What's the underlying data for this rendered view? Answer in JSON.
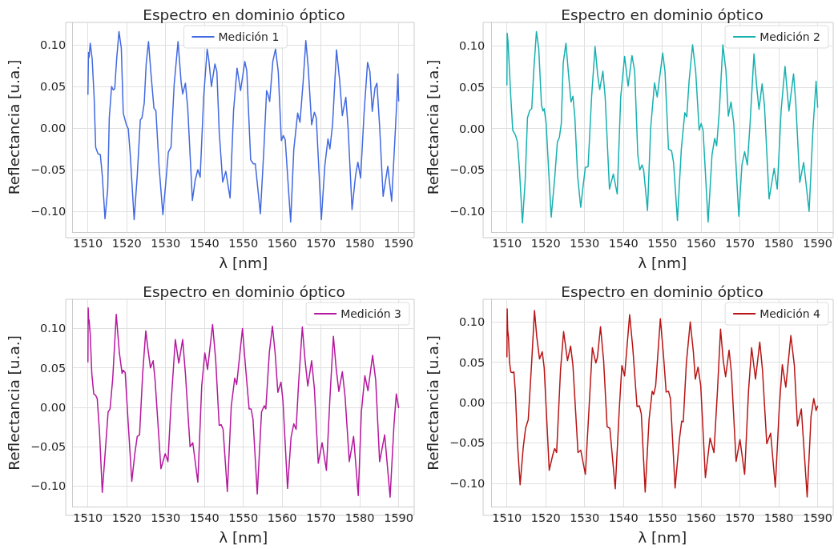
{
  "chart_data": [
    {
      "type": "line",
      "title": "Espectro en dominio óptico",
      "xlabel": "λ [nm]",
      "ylabel": "Reflectancia [u.a.]",
      "xlim": [
        1506,
        1594
      ],
      "xticks": [
        1510,
        1520,
        1530,
        1540,
        1550,
        1560,
        1570,
        1580,
        1590
      ],
      "ylim": [
        -0.125,
        0.127
      ],
      "yticks": [
        {
          "value": -0.1,
          "label": "−0.10"
        },
        {
          "value": -0.05,
          "label": "−0.05"
        },
        {
          "value": 0,
          "label": "0.00"
        },
        {
          "value": 0.05,
          "label": "0.05"
        },
        {
          "value": 0.1,
          "label": "0.10"
        }
      ],
      "grid": true,
      "legend": "top",
      "series": [
        {
          "name": "Medición 1",
          "color": "#4169e1",
          "x": [
            1510.0,
            1510.15,
            1510.3,
            1510.6,
            1511.1,
            1511.6,
            1512.0,
            1512.6,
            1513.2,
            1513.7,
            1514.4,
            1515.1,
            1515.5,
            1516.1,
            1516.5,
            1516.9,
            1517.4,
            1518.0,
            1518.6,
            1519.1,
            1519.9,
            1520.4,
            1520.9,
            1521.9,
            1522.7,
            1523.5,
            1523.9,
            1524.5,
            1525.0,
            1525.6,
            1526.3,
            1527.0,
            1527.5,
            1528.3,
            1529.3,
            1530.1,
            1530.7,
            1531.4,
            1532.2,
            1533.2,
            1534.0,
            1534.4,
            1535.1,
            1535.7,
            1536.9,
            1537.6,
            1538.3,
            1538.9,
            1539.8,
            1540.7,
            1541.1,
            1541.8,
            1542.7,
            1543.2,
            1543.8,
            1544.7,
            1545.5,
            1546.6,
            1547.5,
            1548.4,
            1549.3,
            1550.4,
            1550.9,
            1551.9,
            1552.6,
            1553.1,
            1554.4,
            1555.3,
            1556.0,
            1556.4,
            1556.8,
            1557.6,
            1558.3,
            1559.0,
            1559.8,
            1560.3,
            1560.8,
            1562.2,
            1563.0,
            1564.0,
            1564.6,
            1565.4,
            1566.1,
            1566.7,
            1567.6,
            1568.3,
            1568.8,
            1570.1,
            1571.0,
            1571.8,
            1572.3,
            1573.0,
            1574.0,
            1574.8,
            1575.5,
            1576.4,
            1577.0,
            1578.0,
            1578.9,
            1579.5,
            1580.2,
            1581.1,
            1582.0,
            1582.6,
            1583.2,
            1583.9,
            1584.4,
            1585.1,
            1586.0,
            1587.2,
            1588.2,
            1589.2,
            1589.7,
            1589.8,
            1590.0
          ],
          "values": [
            0.04,
            0.091,
            0.085,
            0.102,
            0.083,
            0.037,
            -0.023,
            -0.031,
            -0.032,
            -0.057,
            -0.109,
            -0.073,
            0.012,
            0.05,
            0.046,
            0.047,
            0.083,
            0.116,
            0.096,
            0.018,
            0.004,
            -0.001,
            -0.032,
            -0.11,
            -0.057,
            0.01,
            0.012,
            0.03,
            0.077,
            0.104,
            0.062,
            0.024,
            0.021,
            -0.045,
            -0.104,
            -0.063,
            -0.029,
            -0.023,
            0.052,
            0.104,
            0.055,
            0.041,
            0.054,
            0.024,
            -0.087,
            -0.063,
            -0.05,
            -0.059,
            0.037,
            0.095,
            0.083,
            0.05,
            0.077,
            0.068,
            -0.004,
            -0.065,
            -0.052,
            -0.084,
            0.021,
            0.072,
            0.045,
            0.08,
            0.069,
            -0.038,
            -0.043,
            -0.043,
            -0.103,
            -0.026,
            0.045,
            0.04,
            0.032,
            0.08,
            0.095,
            0.068,
            -0.015,
            -0.009,
            -0.014,
            -0.113,
            -0.026,
            0.018,
            0.007,
            0.055,
            0.105,
            0.074,
            0.004,
            0.019,
            0.012,
            -0.11,
            -0.045,
            -0.013,
            -0.025,
            0.005,
            0.094,
            0.058,
            0.015,
            0.037,
            -0.001,
            -0.098,
            -0.057,
            -0.041,
            -0.06,
            0.018,
            0.079,
            0.068,
            0.02,
            0.048,
            0.054,
            0.002,
            -0.082,
            -0.046,
            -0.088,
            0.002,
            0.05,
            0.065,
            0.032
          ]
        }
      ]
    },
    {
      "type": "line",
      "title": "Espectro en dominio óptico",
      "xlabel": "λ [nm]",
      "ylabel": "Reflectancia [u.a.]",
      "xlim": [
        1506,
        1594
      ],
      "xticks": [
        1510,
        1520,
        1530,
        1540,
        1550,
        1560,
        1570,
        1580,
        1590
      ],
      "ylim": [
        -0.125,
        0.128
      ],
      "yticks": [
        {
          "value": -0.1,
          "label": "−0.10"
        },
        {
          "value": -0.05,
          "label": "−0.05"
        },
        {
          "value": 0,
          "label": "0.00"
        },
        {
          "value": 0.05,
          "label": "0.05"
        },
        {
          "value": 0.1,
          "label": "0.10"
        }
      ],
      "grid": true,
      "legend": "top right",
      "series": [
        {
          "name": "Medición 2",
          "color": "#17b0b0",
          "x": [
            1510.0,
            1510.07,
            1510.3,
            1510.5,
            1511.0,
            1511.5,
            1512.2,
            1512.7,
            1513.2,
            1514.0,
            1514.7,
            1515.3,
            1515.9,
            1516.4,
            1516.9,
            1517.6,
            1518.2,
            1518.9,
            1519.3,
            1519.6,
            1520.1,
            1521.4,
            1522.3,
            1523.0,
            1523.5,
            1524.0,
            1524.5,
            1525.2,
            1525.8,
            1526.5,
            1527.0,
            1527.5,
            1528.2,
            1529.0,
            1529.7,
            1530.2,
            1530.9,
            1531.8,
            1532.7,
            1533.4,
            1533.9,
            1534.7,
            1535.3,
            1536.4,
            1537.4,
            1538.4,
            1539.3,
            1540.3,
            1541.2,
            1542.2,
            1542.9,
            1543.7,
            1544.2,
            1544.8,
            1545.2,
            1546.2,
            1547.0,
            1548.0,
            1548.7,
            1550.1,
            1550.7,
            1551.6,
            1552.4,
            1552.9,
            1553.9,
            1554.9,
            1555.8,
            1556.3,
            1556.9,
            1557.8,
            1558.6,
            1559.5,
            1560.0,
            1560.5,
            1561.8,
            1562.8,
            1563.5,
            1564.0,
            1564.7,
            1565.6,
            1566.4,
            1567.0,
            1567.7,
            1568.4,
            1569.7,
            1570.5,
            1571.2,
            1571.9,
            1572.6,
            1573.6,
            1574.4,
            1574.9,
            1575.7,
            1576.3,
            1577.5,
            1578.8,
            1579.6,
            1580.6,
            1581.6,
            1582.6,
            1583.8,
            1584.4,
            1585.4,
            1586.4,
            1587.8,
            1588.8,
            1589.6,
            1590.0
          ],
          "values": [
            0.052,
            0.115,
            0.104,
            0.085,
            0.038,
            -0.002,
            -0.008,
            -0.016,
            -0.047,
            -0.114,
            -0.063,
            0.013,
            0.022,
            0.024,
            0.069,
            0.117,
            0.096,
            0.028,
            0.021,
            0.024,
            0.006,
            -0.107,
            -0.06,
            -0.016,
            -0.011,
            0.006,
            0.079,
            0.103,
            0.069,
            0.032,
            0.039,
            0.013,
            -0.057,
            -0.095,
            -0.066,
            -0.047,
            -0.046,
            0.038,
            0.099,
            0.063,
            0.047,
            0.069,
            0.038,
            -0.073,
            -0.055,
            -0.079,
            0.038,
            0.087,
            0.051,
            0.088,
            0.069,
            -0.032,
            -0.05,
            -0.044,
            -0.05,
            -0.099,
            0.0,
            0.055,
            0.038,
            0.091,
            0.069,
            -0.025,
            -0.027,
            -0.041,
            -0.111,
            -0.025,
            0.019,
            0.014,
            0.057,
            0.101,
            0.069,
            -0.002,
            0.006,
            -0.002,
            -0.113,
            -0.032,
            -0.012,
            -0.021,
            0.022,
            0.101,
            0.069,
            0.015,
            0.032,
            0.006,
            -0.106,
            -0.044,
            -0.028,
            -0.044,
            0.006,
            0.09,
            0.046,
            0.023,
            0.054,
            0.028,
            -0.085,
            -0.048,
            -0.073,
            0.022,
            0.075,
            0.021,
            0.066,
            0.028,
            -0.065,
            -0.041,
            -0.1,
            0.0,
            0.057,
            0.025
          ]
        }
      ]
    },
    {
      "type": "line",
      "title": "Espectro en dominio óptico",
      "xlabel": "λ [nm]",
      "ylabel": "Reflectancia [u.a.]",
      "xlim": [
        1506,
        1594
      ],
      "xticks": [
        1510,
        1520,
        1530,
        1540,
        1550,
        1560,
        1570,
        1580,
        1590
      ],
      "ylim": [
        -0.126,
        0.137
      ],
      "yticks": [
        {
          "value": -0.1,
          "label": "−0.10"
        },
        {
          "value": -0.05,
          "label": "−0.05"
        },
        {
          "value": 0,
          "label": "0.00"
        },
        {
          "value": 0.05,
          "label": "0.05"
        },
        {
          "value": 0.1,
          "label": "0.10"
        }
      ],
      "grid": true,
      "legend": "top right",
      "series": [
        {
          "name": "Medición 3",
          "color": "#b5179e",
          "x": [
            1510.0,
            1510.07,
            1510.2,
            1510.3,
            1510.6,
            1511.0,
            1511.5,
            1512.0,
            1512.4,
            1513.0,
            1513.7,
            1514.5,
            1515.2,
            1515.7,
            1516.4,
            1517.3,
            1518.1,
            1518.8,
            1519.1,
            1519.6,
            1520.2,
            1521.3,
            1522.1,
            1522.7,
            1523.3,
            1524.1,
            1524.9,
            1525.4,
            1526.1,
            1526.8,
            1527.3,
            1528.8,
            1529.9,
            1530.6,
            1531.4,
            1532.5,
            1533.4,
            1534.4,
            1535.1,
            1536.3,
            1537.0,
            1538.3,
            1539.3,
            1540.1,
            1540.8,
            1542.1,
            1542.9,
            1543.8,
            1544.3,
            1544.8,
            1545.9,
            1546.9,
            1547.8,
            1548.3,
            1549.8,
            1550.5,
            1551.5,
            1552.0,
            1552.5,
            1553.6,
            1554.7,
            1555.4,
            1555.8,
            1556.7,
            1557.5,
            1558.2,
            1558.9,
            1559.7,
            1560.2,
            1561.4,
            1562.3,
            1563.0,
            1563.6,
            1564.2,
            1565.2,
            1565.9,
            1566.6,
            1567.6,
            1568.3,
            1569.3,
            1570.3,
            1571.4,
            1572.3,
            1573.2,
            1573.9,
            1574.6,
            1575.5,
            1576.2,
            1577.3,
            1578.4,
            1579.6,
            1580.4,
            1581.3,
            1582.1,
            1583.3,
            1584.1,
            1585.1,
            1586.4,
            1587.8,
            1588.8,
            1589.4,
            1590.0
          ],
          "values": [
            0.057,
            0.126,
            0.109,
            0.111,
            0.092,
            0.043,
            0.017,
            0.015,
            0.011,
            -0.032,
            -0.108,
            -0.054,
            -0.006,
            -0.002,
            0.037,
            0.118,
            0.069,
            0.043,
            0.047,
            0.044,
            -0.006,
            -0.094,
            -0.058,
            -0.037,
            -0.035,
            0.043,
            0.097,
            0.076,
            0.05,
            0.059,
            0.034,
            -0.078,
            -0.059,
            -0.069,
            0.004,
            0.086,
            0.056,
            0.086,
            0.043,
            -0.05,
            -0.045,
            -0.095,
            0.027,
            0.069,
            0.048,
            0.105,
            0.06,
            -0.023,
            -0.022,
            -0.028,
            -0.107,
            0.001,
            0.037,
            0.029,
            0.1,
            0.056,
            -0.002,
            -0.002,
            -0.015,
            -0.11,
            -0.006,
            0.002,
            -0.002,
            0.069,
            0.103,
            0.069,
            0.019,
            0.032,
            0.009,
            -0.103,
            -0.038,
            -0.021,
            -0.028,
            0.027,
            0.102,
            0.06,
            0.027,
            0.059,
            0.024,
            -0.071,
            -0.045,
            -0.08,
            0.011,
            0.09,
            0.05,
            0.02,
            0.045,
            0.014,
            -0.069,
            -0.037,
            -0.112,
            -0.006,
            0.04,
            0.021,
            0.066,
            0.034,
            -0.069,
            -0.035,
            -0.114,
            -0.022,
            0.017,
            -0.001
          ]
        }
      ]
    },
    {
      "type": "line",
      "title": "Espectro en dominio óptico",
      "xlabel": "λ [nm]",
      "ylabel": "Reflectancia [u.a.]",
      "xlim": [
        1506,
        1594
      ],
      "xticks": [
        1510,
        1520,
        1530,
        1540,
        1550,
        1560,
        1570,
        1580,
        1590
      ],
      "ylim": [
        -0.129,
        0.128
      ],
      "yticks": [
        {
          "value": -0.1,
          "label": "−0.10"
        },
        {
          "value": -0.05,
          "label": "−0.05"
        },
        {
          "value": 0,
          "label": "0.00"
        },
        {
          "value": 0.05,
          "label": "0.05"
        },
        {
          "value": 0.1,
          "label": "0.10"
        }
      ],
      "grid": true,
      "legend": "top right",
      "series": [
        {
          "name": "Medición 4",
          "color": "#b81414",
          "x": [
            1510.0,
            1510.07,
            1510.2,
            1510.4,
            1510.7,
            1511.0,
            1511.5,
            1511.8,
            1512.2,
            1512.7,
            1513.4,
            1514.2,
            1514.8,
            1515.5,
            1516.4,
            1517.1,
            1517.7,
            1518.4,
            1519.1,
            1519.6,
            1520.9,
            1521.8,
            1522.3,
            1522.8,
            1523.8,
            1524.6,
            1525.6,
            1526.4,
            1527.0,
            1528.3,
            1529.0,
            1530.2,
            1531.2,
            1532.0,
            1532.9,
            1533.3,
            1534.1,
            1534.9,
            1535.8,
            1536.5,
            1537.9,
            1538.9,
            1539.6,
            1540.3,
            1541.6,
            1542.4,
            1543.5,
            1544.1,
            1544.6,
            1545.6,
            1546.6,
            1547.4,
            1547.8,
            1548.3,
            1549.5,
            1550.3,
            1551.0,
            1551.6,
            1552.1,
            1553.3,
            1554.4,
            1555.0,
            1555.4,
            1556.2,
            1557.2,
            1558.0,
            1558.5,
            1559.2,
            1559.9,
            1561.1,
            1562.3,
            1563.3,
            1564.2,
            1565.0,
            1565.7,
            1566.3,
            1567.2,
            1567.8,
            1569.0,
            1570.0,
            1571.2,
            1572.2,
            1573.0,
            1574.0,
            1575.1,
            1575.8,
            1576.9,
            1577.9,
            1579.1,
            1580.1,
            1580.9,
            1581.8,
            1583.1,
            1584.0,
            1584.8,
            1585.8,
            1587.3,
            1588.3,
            1589.0,
            1589.6,
            1590.0
          ],
          "values": [
            0.056,
            0.116,
            0.09,
            0.081,
            0.049,
            0.038,
            0.037,
            0.038,
            0.011,
            -0.049,
            -0.102,
            -0.056,
            -0.032,
            -0.021,
            0.052,
            0.114,
            0.081,
            0.054,
            0.063,
            0.043,
            -0.084,
            -0.065,
            -0.057,
            -0.062,
            0.04,
            0.088,
            0.052,
            0.07,
            0.046,
            -0.062,
            -0.059,
            -0.089,
            -0.002,
            0.068,
            0.049,
            0.056,
            0.094,
            0.052,
            -0.03,
            -0.032,
            -0.107,
            -0.011,
            0.046,
            0.033,
            0.109,
            0.068,
            -0.005,
            -0.004,
            -0.014,
            -0.111,
            -0.021,
            0.014,
            0.01,
            0.021,
            0.104,
            0.059,
            0.013,
            0.014,
            0.005,
            -0.106,
            -0.046,
            -0.023,
            -0.024,
            0.049,
            0.1,
            0.063,
            0.029,
            0.044,
            0.021,
            -0.093,
            -0.044,
            -0.062,
            0.014,
            0.091,
            0.052,
            0.032,
            0.065,
            0.037,
            -0.073,
            -0.046,
            -0.089,
            0.014,
            0.068,
            0.029,
            0.075,
            0.04,
            -0.051,
            -0.038,
            -0.105,
            -0.008,
            0.047,
            0.019,
            0.083,
            0.046,
            -0.029,
            -0.008,
            -0.117,
            -0.017,
            0.005,
            -0.01,
            -0.004
          ]
        }
      ]
    }
  ]
}
